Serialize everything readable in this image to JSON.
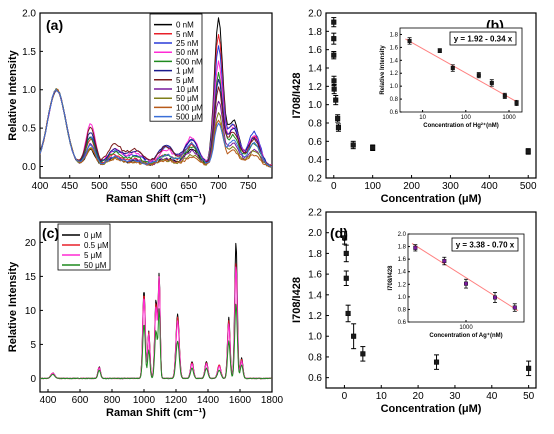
{
  "chart_data": [
    {
      "id": "a",
      "type": "line",
      "panel_label": "(a)",
      "xlabel": "Raman Shift (cm⁻¹)",
      "ylabel": "Relative Intensity",
      "xlim": [
        400,
        790
      ],
      "ylim": [
        -0.15,
        2.0
      ],
      "xticks": [
        400,
        450,
        500,
        550,
        600,
        650,
        700,
        750
      ],
      "yticks": [
        0.0,
        0.5,
        1.0,
        1.5,
        2.0
      ],
      "ytick_labels": [
        "0.0",
        "0.5",
        "1.0",
        "1.5",
        "2.0"
      ],
      "legend_position": "top-center",
      "peak_model": [
        [
          428,
          15
        ],
        [
          485,
          8
        ],
        [
          525,
          12
        ],
        [
          560,
          14
        ],
        [
          612,
          14
        ],
        [
          655,
          12
        ],
        [
          700,
          7
        ],
        [
          725,
          10
        ],
        [
          760,
          10
        ]
      ],
      "series": [
        {
          "name": "0 nM",
          "color": "#000000",
          "peak_heights": [
            1.0,
            0.22,
            0.12,
            0.06,
            0.1,
            0.22,
            1.92,
            0.6,
            0.38
          ]
        },
        {
          "name": "5 nM",
          "color": "#e8202a",
          "peak_heights": [
            1.0,
            0.35,
            0.15,
            0.1,
            0.15,
            0.28,
            1.7,
            0.55,
            0.4
          ]
        },
        {
          "name": "25 nM",
          "color": "#2a3bd8",
          "peak_heights": [
            1.0,
            0.4,
            0.2,
            0.15,
            0.25,
            0.35,
            1.55,
            0.55,
            0.45
          ]
        },
        {
          "name": "50 nM",
          "color": "#ff2bd4",
          "peak_heights": [
            1.0,
            0.55,
            0.22,
            0.18,
            0.22,
            0.38,
            1.35,
            0.5,
            0.4
          ]
        },
        {
          "name": "500 nM",
          "color": "#1f8a1f",
          "peak_heights": [
            1.0,
            0.38,
            0.18,
            0.12,
            0.15,
            0.25,
            1.2,
            0.4,
            0.3
          ]
        },
        {
          "name": "1 μM",
          "color": "#1a1a8c",
          "peak_heights": [
            1.0,
            0.45,
            0.22,
            0.2,
            0.28,
            0.35,
            1.1,
            0.5,
            0.38
          ]
        },
        {
          "name": "5 μM",
          "color": "#7a1a1a",
          "peak_heights": [
            1.0,
            0.5,
            0.28,
            0.22,
            0.25,
            0.3,
            1.0,
            0.45,
            0.35
          ]
        },
        {
          "name": "10 μM",
          "color": "#7a1a9e",
          "peak_heights": [
            1.0,
            0.3,
            0.12,
            0.08,
            0.1,
            0.2,
            0.85,
            0.3,
            0.22
          ]
        },
        {
          "name": "50 μM",
          "color": "#7f7f1a",
          "peak_heights": [
            1.0,
            0.25,
            0.1,
            0.06,
            0.08,
            0.15,
            0.7,
            0.25,
            0.2
          ]
        },
        {
          "name": "100 μM",
          "color": "#b85a1a",
          "peak_heights": [
            1.0,
            0.22,
            0.1,
            0.05,
            0.08,
            0.12,
            0.6,
            0.2,
            0.15
          ]
        },
        {
          "name": "500 μM",
          "color": "#3a6fd8",
          "peak_heights": [
            1.0,
            0.28,
            0.12,
            0.08,
            0.15,
            0.3,
            0.55,
            0.35,
            0.3
          ]
        }
      ]
    },
    {
      "id": "b",
      "type": "scatter",
      "panel_label": "(b)",
      "xlabel": "Concentration (μM)",
      "ylabel": "I708/I428",
      "xlim": [
        -20,
        520
      ],
      "ylim": [
        0.2,
        2.0
      ],
      "xticks": [
        0,
        100,
        200,
        300,
        400,
        500
      ],
      "yticks": [
        0.2,
        0.4,
        0.6,
        0.8,
        1.0,
        1.2,
        1.4,
        1.6,
        1.8,
        2.0
      ],
      "ytick_labels": [
        "0.2",
        "0.4",
        "0.6",
        "0.8",
        "1.0",
        "1.2",
        "1.4",
        "1.6",
        "1.8",
        "2.0"
      ],
      "points": [
        {
          "x": 0.0,
          "y": 1.9,
          "err": 0.05
        },
        {
          "x": 0.0,
          "y": 1.72,
          "err": 0.06
        },
        {
          "x": 0.0,
          "y": 1.54,
          "err": 0.04
        },
        {
          "x": 0.5,
          "y": 1.26,
          "err": 0.05
        },
        {
          "x": 1.0,
          "y": 1.17,
          "err": 0.05
        },
        {
          "x": 5.0,
          "y": 1.05,
          "err": 0.05
        },
        {
          "x": 10.0,
          "y": 0.85,
          "err": 0.04
        },
        {
          "x": 12.0,
          "y": 0.75,
          "err": 0.04
        },
        {
          "x": 50.0,
          "y": 0.56,
          "err": 0.04
        },
        {
          "x": 100.0,
          "y": 0.53,
          "err": 0.03
        },
        {
          "x": 500.0,
          "y": 0.49,
          "err": 0.03
        }
      ],
      "inset": {
        "type": "scatter",
        "equation": "y = 1.92 - 0.34 x",
        "xlabel": "Concentration of Hg²⁺(nM)",
        "ylabel": "Relative Intensity",
        "xscale": "log",
        "xlim": [
          3,
          2000
        ],
        "xticks": [
          10,
          100,
          1000
        ],
        "xtick_labels": [
          "10",
          "100",
          "1000"
        ],
        "ylim": [
          0.6,
          1.9
        ],
        "yticks": [
          0.6,
          0.8,
          1.0,
          1.2,
          1.4,
          1.6,
          1.8
        ],
        "ytick_labels": [
          "0.6",
          "0.8",
          "1.0",
          "1.2",
          "1.4",
          "1.6",
          "1.8"
        ],
        "points": [
          {
            "x": 5,
            "y": 1.7,
            "err": 0.05
          },
          {
            "x": 25,
            "y": 1.55,
            "err": 0.03
          },
          {
            "x": 50,
            "y": 1.28,
            "err": 0.05
          },
          {
            "x": 200,
            "y": 1.17,
            "err": 0.04
          },
          {
            "x": 400,
            "y": 1.05,
            "err": 0.05
          },
          {
            "x": 800,
            "y": 0.85,
            "err": 0.04
          },
          {
            "x": 1500,
            "y": 0.74,
            "err": 0.04
          }
        ],
        "fit_line": [
          [
            4,
            1.73
          ],
          [
            1600,
            0.75
          ]
        ]
      }
    },
    {
      "id": "c",
      "type": "line",
      "panel_label": "(c)",
      "xlabel": "Raman Shift (cm⁻¹)",
      "ylabel": "Relative Intensity",
      "xlim": [
        350,
        1800
      ],
      "ylim": [
        -2,
        23
      ],
      "xticks": [
        400,
        600,
        800,
        1000,
        1200,
        1400,
        1600,
        1800
      ],
      "yticks": [
        0,
        5,
        10,
        15,
        20
      ],
      "ytick_labels": [
        "0",
        "5",
        "10",
        "15",
        "20"
      ],
      "legend_position": "top-left",
      "peak_model": [
        [
          430,
          12
        ],
        [
          720,
          8
        ],
        [
          1000,
          8
        ],
        [
          1030,
          7
        ],
        [
          1075,
          8
        ],
        [
          1095,
          6
        ],
        [
          1210,
          10
        ],
        [
          1300,
          9
        ],
        [
          1390,
          9
        ],
        [
          1470,
          10
        ],
        [
          1530,
          8
        ],
        [
          1575,
          8
        ],
        [
          1610,
          8
        ]
      ],
      "series": [
        {
          "name": "0 μM",
          "color": "#000000",
          "peak_heights": [
            0.8,
            1.7,
            13.0,
            7.0,
            11.5,
            15.0,
            9.5,
            2.5,
            2.5,
            2.0,
            9.0,
            20.0,
            3.0
          ]
        },
        {
          "name": "0.5 μM",
          "color": "#e8202a",
          "peak_heights": [
            0.8,
            1.6,
            12.5,
            6.8,
            11.0,
            14.5,
            9.0,
            2.3,
            2.3,
            2.0,
            8.5,
            17.0,
            2.8
          ]
        },
        {
          "name": "5 μM",
          "color": "#ff2bd4",
          "peak_heights": [
            0.8,
            1.6,
            12.0,
            6.5,
            10.5,
            14.5,
            8.5,
            2.2,
            2.2,
            1.8,
            8.0,
            16.5,
            2.6
          ]
        },
        {
          "name": "50 μM",
          "color": "#1f8a1f",
          "peak_heights": [
            0.6,
            1.2,
            8.0,
            4.2,
            7.0,
            10.0,
            5.5,
            1.5,
            1.5,
            1.2,
            5.5,
            11.0,
            2.0
          ]
        }
      ]
    },
    {
      "id": "d",
      "type": "scatter",
      "panel_label": "(d)",
      "xlabel": "Concentration (μM)",
      "ylabel": "I708/I428",
      "xlim": [
        -5,
        52
      ],
      "ylim": [
        0.5,
        2.2
      ],
      "xticks": [
        0,
        10,
        20,
        30,
        40,
        50
      ],
      "yticks": [
        0.6,
        0.8,
        1.0,
        1.2,
        1.4,
        1.6,
        1.8,
        2.0,
        2.2
      ],
      "ytick_labels": [
        "0.6",
        "0.8",
        "1.0",
        "1.2",
        "1.4",
        "1.6",
        "1.8",
        "2.0",
        "2.2"
      ],
      "points": [
        {
          "x": 0.05,
          "y": 1.95,
          "err": 0.06
        },
        {
          "x": 0.5,
          "y": 1.8,
          "err": 0.08
        },
        {
          "x": 0.5,
          "y": 1.56,
          "err": 0.07
        },
        {
          "x": 1.0,
          "y": 1.22,
          "err": 0.08
        },
        {
          "x": 2.5,
          "y": 1.0,
          "err": 0.12
        },
        {
          "x": 5.0,
          "y": 0.83,
          "err": 0.07
        },
        {
          "x": 25.0,
          "y": 0.75,
          "err": 0.07
        },
        {
          "x": 50.0,
          "y": 0.69,
          "err": 0.07
        }
      ],
      "inset": {
        "type": "scatter",
        "equation": "y = 3.38 - 0.70 x",
        "xlabel": "Concentration of Ag⁺(nM)",
        "ylabel": "I708/I428",
        "xscale": "log",
        "xlim": [
          40,
          25000
        ],
        "xticks": [
          1000
        ],
        "xtick_labels": [
          "1000"
        ],
        "ylim": [
          0.6,
          2.0
        ],
        "yticks": [
          0.6,
          0.8,
          1.0,
          1.2,
          1.4,
          1.6,
          1.8,
          2.0
        ],
        "ytick_labels": [
          "0.6",
          "0.8",
          "1.0",
          "1.2",
          "1.4",
          "1.6",
          "1.8",
          "2.0"
        ],
        "points": [
          {
            "x": 60,
            "y": 1.78,
            "err": 0.05
          },
          {
            "x": 300,
            "y": 1.57,
            "err": 0.06
          },
          {
            "x": 1000,
            "y": 1.21,
            "err": 0.07
          },
          {
            "x": 5000,
            "y": 0.99,
            "err": 0.08
          },
          {
            "x": 15000,
            "y": 0.83,
            "err": 0.06
          }
        ],
        "fit_line": [
          [
            50,
            1.85
          ],
          [
            18000,
            0.78
          ]
        ]
      }
    }
  ]
}
